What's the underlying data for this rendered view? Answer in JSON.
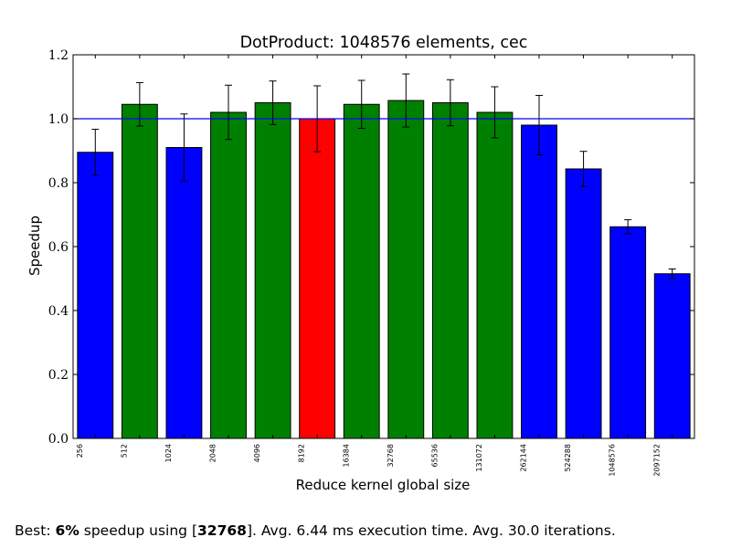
{
  "chart_data": {
    "type": "bar",
    "title": "DotProduct: 1048576 elements, cec",
    "xlabel": "Reduce kernel global size",
    "ylabel": "Speedup",
    "ylim": [
      0.0,
      1.2
    ],
    "yticks": [
      "0.0",
      "0.2",
      "0.4",
      "0.6",
      "0.8",
      "1.0",
      "1.2"
    ],
    "baseline": 1.0,
    "categories": [
      "256",
      "512",
      "1024",
      "2048",
      "4096",
      "8192",
      "16384",
      "32768",
      "65536",
      "131072",
      "262144",
      "524288",
      "1048576",
      "2097152"
    ],
    "values": [
      0.895,
      1.045,
      0.91,
      1.02,
      1.05,
      1.0,
      1.045,
      1.057,
      1.05,
      1.02,
      0.98,
      0.843,
      0.662,
      0.515
    ],
    "errors": [
      0.072,
      0.068,
      0.105,
      0.085,
      0.068,
      0.103,
      0.075,
      0.083,
      0.072,
      0.08,
      0.093,
      0.055,
      0.022,
      0.015
    ],
    "bar_colors": [
      "#0000ff",
      "#008000",
      "#0000ff",
      "#008000",
      "#008000",
      "#ff0000",
      "#008000",
      "#008000",
      "#008000",
      "#008000",
      "#0000ff",
      "#0000ff",
      "#0000ff",
      "#0000ff"
    ],
    "baseline_color": "#0000ff",
    "grid": false
  },
  "caption": {
    "prefix": "Best: ",
    "pct": "6%",
    "mid": " speedup using [",
    "size": "32768",
    "suffix": "]. Avg. 6.44 ms execution time. Avg. 30.0 iterations."
  }
}
